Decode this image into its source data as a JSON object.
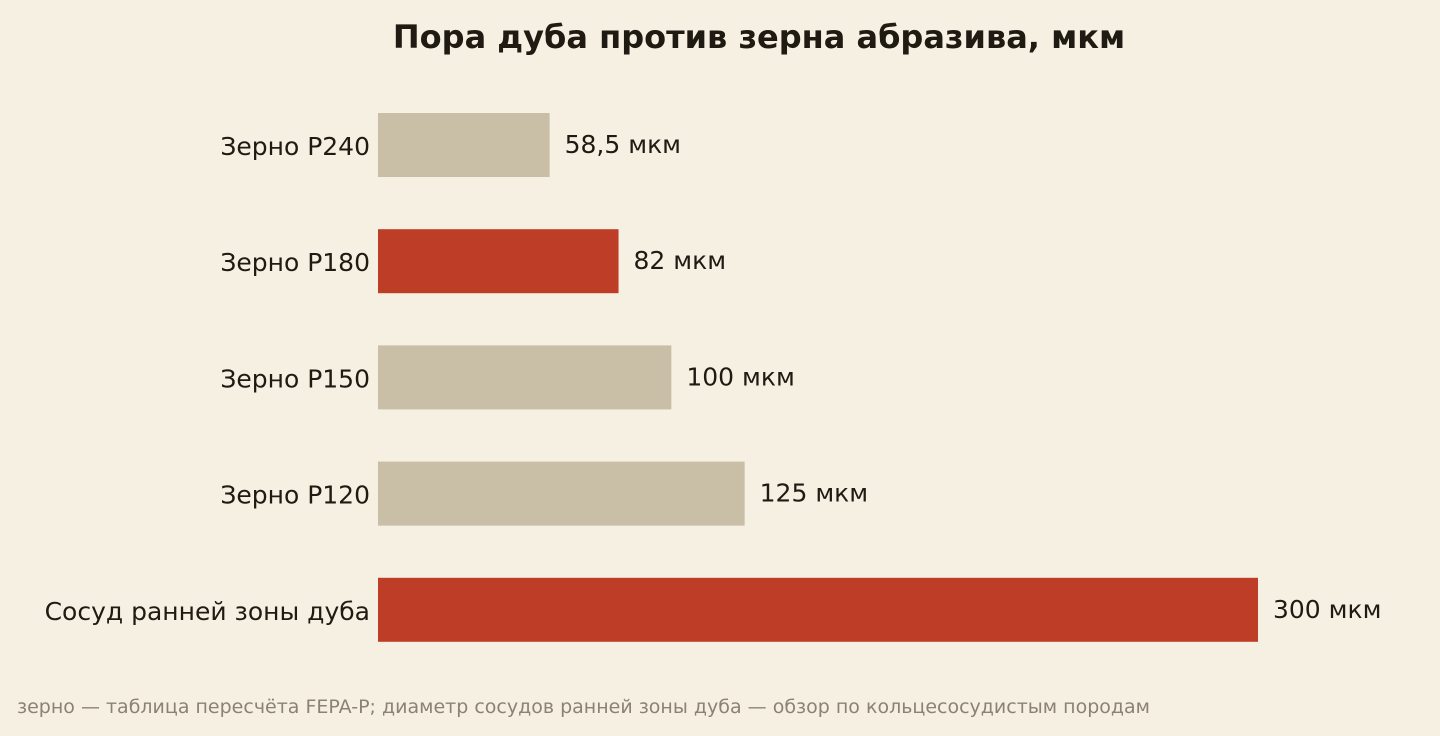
{
  "chart_data": {
    "type": "bar",
    "orientation": "horizontal",
    "title": "Пора дуба против зерна абразива, мкм",
    "xlabel": "",
    "ylabel": "",
    "xlim": [
      0,
      300
    ],
    "grid": false,
    "legend": false,
    "categories": [
      "Зерно P240",
      "Зерно P180",
      "Зерно P150",
      "Зерно P120",
      "Сосуд ранней зоны дуба"
    ],
    "values": [
      58.5,
      82,
      100,
      125,
      300
    ],
    "value_labels": [
      "58,5 мкм",
      "82 мкм",
      "100 мкм",
      "125 мкм",
      "300 мкм"
    ],
    "bar_colors": [
      "#c9bfa6",
      "#bd3d27",
      "#c9bfa6",
      "#c9bfa6",
      "#bd3d27"
    ],
    "source": "зерно — таблица пересчёта FEPA-P; диаметр сосудов ранней зоны дуба — обзор по кольцесосудистым породам"
  }
}
